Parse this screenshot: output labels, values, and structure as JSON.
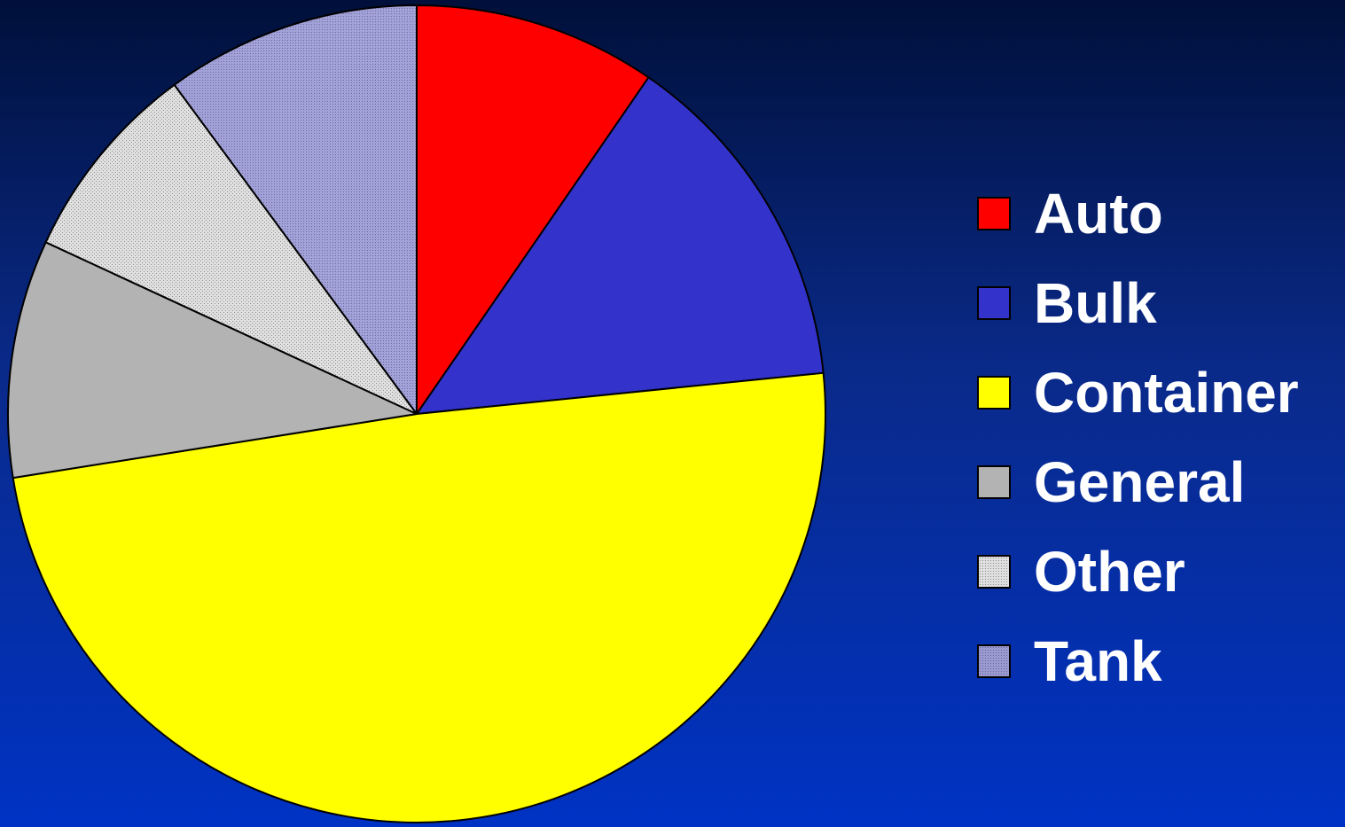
{
  "chart_data": {
    "type": "pie",
    "title": "",
    "categories": [
      "Auto",
      "Bulk",
      "Container",
      "General",
      "Other",
      "Tank"
    ],
    "values": [
      9.6,
      13.8,
      49.1,
      9.4,
      8.0,
      10.1
    ],
    "unit": "percent",
    "start_angle": "12 o'clock",
    "direction": "clockwise",
    "legend_position": "right",
    "series": [
      {
        "name": "Auto",
        "value": 9.6,
        "color": "#ff0000",
        "pattern": "solid"
      },
      {
        "name": "Bulk",
        "value": 13.8,
        "color": "#3333cc",
        "pattern": "solid"
      },
      {
        "name": "Container",
        "value": 49.1,
        "color": "#ffff00",
        "pattern": "solid"
      },
      {
        "name": "General",
        "value": 9.4,
        "color": "#b3b3b3",
        "pattern": "solid"
      },
      {
        "name": "Other",
        "value": 8.0,
        "color": "#e0e0e0",
        "pattern": "dotted"
      },
      {
        "name": "Tank",
        "value": 10.1,
        "color": "#9a9ad0",
        "pattern": "dotted"
      }
    ]
  },
  "colors": {
    "background_top": "#00103a",
    "background_bottom": "#0033c4",
    "label_text": "#ffffff",
    "outline": "#000000"
  }
}
